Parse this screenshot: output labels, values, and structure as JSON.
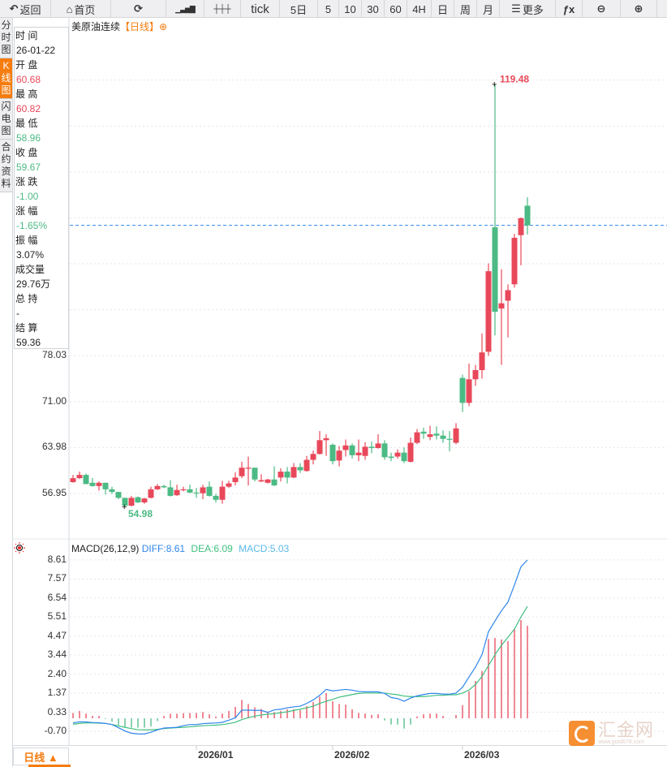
{
  "toolbar": {
    "items": [
      {
        "label": "返回",
        "icon": "back-arrow-icon"
      },
      {
        "label": "首页",
        "icon": "home-icon"
      },
      {
        "label": "",
        "icon": "refresh-icon"
      },
      {
        "label": "",
        "icon": "bar-chart-icon"
      },
      {
        "label": "",
        "icon": "candlestick-icon"
      },
      {
        "label": "tick"
      },
      {
        "label": "5日"
      },
      {
        "label": "5"
      },
      {
        "label": "10"
      },
      {
        "label": "30"
      },
      {
        "label": "60"
      },
      {
        "label": "4H"
      },
      {
        "label": "日"
      },
      {
        "label": "周"
      },
      {
        "label": "月"
      },
      {
        "label": "更多",
        "icon": "menu-icon"
      },
      {
        "label": "",
        "icon": "fx-icon"
      },
      {
        "label": "",
        "icon": "zoom-out-icon"
      },
      {
        "label": "",
        "icon": "zoom-in-icon"
      }
    ]
  },
  "side_tabs": [
    {
      "label": "分时图",
      "active": false
    },
    {
      "label": "K线图",
      "active": true
    },
    {
      "label": "闪电图",
      "active": false
    },
    {
      "label": "合约资料",
      "active": false
    }
  ],
  "chart_title": {
    "name": "美原油连续",
    "period": "【日线】",
    "icon": "add-circle-icon"
  },
  "info": [
    {
      "label": "时 间",
      "value": "26-01-22",
      "color": "#222222"
    },
    {
      "label": "开 盘",
      "value": "60.68",
      "color": "#e8485a"
    },
    {
      "label": "最 高",
      "value": "60.82",
      "color": "#e8485a"
    },
    {
      "label": "最 低",
      "value": "58.96",
      "color": "#4cba84"
    },
    {
      "label": "收 盘",
      "value": "59.67",
      "color": "#4cba84"
    },
    {
      "label": "涨 跌",
      "value": "-1.00",
      "color": "#4cba84"
    },
    {
      "label": "涨 幅",
      "value": "-1.65%",
      "color": "#4cba84"
    },
    {
      "label": "振 幅",
      "value": "3.07%",
      "color": "#222222"
    },
    {
      "label": "成交量",
      "value": "29.76万",
      "color": "#222222"
    },
    {
      "label": "总 持",
      "value": " -",
      "color": "#222222"
    },
    {
      "label": "结 算",
      "value": "59.36",
      "color": "#222222"
    }
  ],
  "colors": {
    "up": "#e8485a",
    "down": "#4cba84",
    "diff": "#2e86ee",
    "dea": "#3fbf7f",
    "macd_label": "#5bb8e8",
    "accent": "#f57c0f",
    "last_price_line": "#2e86ee"
  },
  "chart_data": [
    {
      "type": "candlestick",
      "y_ticks": [
        "56.95",
        "63.98",
        "71.00",
        "78.03"
      ],
      "grid": true,
      "max_marker": "119.48",
      "min_marker": "54.98",
      "last_price": 97.9,
      "x_ticks": [
        {
          "label": "2026/01",
          "index": 19
        },
        {
          "label": "2026/02",
          "index": 40
        },
        {
          "label": "2026/03",
          "index": 60
        }
      ],
      "ohlc": [
        [
          58.7,
          59.8,
          58.6,
          59.3
        ],
        [
          59.3,
          60.3,
          59.2,
          59.8
        ],
        [
          59.8,
          60.0,
          58.4,
          58.4
        ],
        [
          58.6,
          59.3,
          58.0,
          58.1
        ],
        [
          58.1,
          58.8,
          57.4,
          58.6
        ],
        [
          58.6,
          58.6,
          56.8,
          57.6
        ],
        [
          57.6,
          58.0,
          56.9,
          57.2
        ],
        [
          57.2,
          57.2,
          56.1,
          56.3
        ],
        [
          56.3,
          56.3,
          54.98,
          55.1
        ],
        [
          55.1,
          56.6,
          55.0,
          56.3
        ],
        [
          56.4,
          56.5,
          55.5,
          55.6
        ],
        [
          55.6,
          56.3,
          55.4,
          56.2
        ],
        [
          56.3,
          58.0,
          56.2,
          57.6
        ],
        [
          57.6,
          58.4,
          57.5,
          58.1
        ],
        [
          58.1,
          58.3,
          57.8,
          57.9
        ],
        [
          57.9,
          59.0,
          56.5,
          56.6
        ],
        [
          56.7,
          58.3,
          56.6,
          57.5
        ],
        [
          57.5,
          58.0,
          57.3,
          57.6
        ],
        [
          57.6,
          58.3,
          57.0,
          57.1
        ],
        [
          57.1,
          57.8,
          56.3,
          57.0
        ],
        [
          57.0,
          58.3,
          56.1,
          57.9
        ],
        [
          58.0,
          58.8,
          56.5,
          56.6
        ],
        [
          56.6,
          56.9,
          55.6,
          56.0
        ],
        [
          56.0,
          58.9,
          55.4,
          58.0
        ],
        [
          58.0,
          58.9,
          57.8,
          58.5
        ],
        [
          58.7,
          60.2,
          58.2,
          59.4
        ],
        [
          59.6,
          61.8,
          59.3,
          60.9
        ],
        [
          60.8,
          62.6,
          58.2,
          60.9
        ],
        [
          60.9,
          60.9,
          58.8,
          59.1
        ],
        [
          58.8,
          59.9,
          58.7,
          59.0
        ],
        [
          58.6,
          59.2,
          58.5,
          59.1
        ],
        [
          59.1,
          61.1,
          58.1,
          58.2
        ],
        [
          59.4,
          60.8,
          58.8,
          60.3
        ],
        [
          60.3,
          61.0,
          58.5,
          59.4
        ],
        [
          59.4,
          61.6,
          59.3,
          61.0
        ],
        [
          61.0,
          61.6,
          60.1,
          60.5
        ],
        [
          60.4,
          62.7,
          60.3,
          62.1
        ],
        [
          62.1,
          63.5,
          61.4,
          63.0
        ],
        [
          63.0,
          66.5,
          62.9,
          65.1
        ],
        [
          65.1,
          66.0,
          62.7,
          65.4
        ],
        [
          64.4,
          64.6,
          61.4,
          61.9
        ],
        [
          62.0,
          64.2,
          61.1,
          63.5
        ],
        [
          63.6,
          65.2,
          62.6,
          64.3
        ],
        [
          64.3,
          64.6,
          62.3,
          62.8
        ],
        [
          62.8,
          65.2,
          61.9,
          63.2
        ],
        [
          62.7,
          64.8,
          62.1,
          64.1
        ],
        [
          64.1,
          64.9,
          63.1,
          63.9
        ],
        [
          63.9,
          66.0,
          63.8,
          64.6
        ],
        [
          64.6,
          65.1,
          62.1,
          62.5
        ],
        [
          62.6,
          63.2,
          61.9,
          62.4
        ],
        [
          62.6,
          63.7,
          62.3,
          63.2
        ],
        [
          63.2,
          64.0,
          61.6,
          61.9
        ],
        [
          61.8,
          65.5,
          61.7,
          64.7
        ],
        [
          64.7,
          66.8,
          64.5,
          66.3
        ],
        [
          66.4,
          67.0,
          65.3,
          66.1
        ],
        [
          65.6,
          67.3,
          65.1,
          66.0
        ],
        [
          66.1,
          67.2,
          65.2,
          65.8
        ],
        [
          65.8,
          66.6,
          64.7,
          65.3
        ],
        [
          65.3,
          66.5,
          63.4,
          65.2
        ],
        [
          64.7,
          67.7,
          64.5,
          66.9
        ],
        [
          74.6,
          75.1,
          69.4,
          70.8
        ],
        [
          70.8,
          76.8,
          70.3,
          74.4
        ],
        [
          74.4,
          76.6,
          73.4,
          75.8
        ],
        [
          75.8,
          81.4,
          74.5,
          78.5
        ],
        [
          78.6,
          92.1,
          78.0,
          90.9
        ],
        [
          97.6,
          119.48,
          81.1,
          84.7
        ],
        [
          85.2,
          91.2,
          76.6,
          86.0
        ],
        [
          86.4,
          88.9,
          80.8,
          88.0
        ],
        [
          88.9,
          96.6,
          88.4,
          96.0
        ],
        [
          96.4,
          99.1,
          91.8,
          99.0
        ],
        [
          100.9,
          102.2,
          96.5,
          97.9
        ]
      ]
    },
    {
      "type": "macd",
      "title": "MACD(26,12,9)",
      "diff_label": "DIFF:8.61",
      "dea_label": "DEA:6.09",
      "macd_label": "MACD:5.03",
      "y_ticks": [
        "8.61",
        "7.57",
        "6.54",
        "5.51",
        "4.47",
        "3.44",
        "2.40",
        "1.37",
        "0.33",
        "-0.70"
      ],
      "diff": [
        -0.25,
        -0.19,
        -0.2,
        -0.23,
        -0.24,
        -0.28,
        -0.34,
        -0.51,
        -0.69,
        -0.81,
        -0.85,
        -0.85,
        -0.76,
        -0.63,
        -0.53,
        -0.51,
        -0.49,
        -0.4,
        -0.34,
        -0.34,
        -0.29,
        -0.27,
        -0.25,
        -0.22,
        -0.1,
        0.03,
        0.44,
        0.44,
        0.43,
        0.43,
        0.32,
        0.46,
        0.49,
        0.57,
        0.62,
        0.66,
        0.81,
        1.0,
        1.25,
        1.57,
        1.49,
        1.53,
        1.57,
        1.53,
        1.46,
        1.44,
        1.44,
        1.44,
        1.35,
        1.13,
        1.07,
        0.93,
        1.1,
        1.22,
        1.29,
        1.35,
        1.35,
        1.32,
        1.31,
        1.37,
        1.69,
        2.25,
        2.79,
        3.46,
        4.71,
        5.29,
        5.85,
        6.32,
        7.25,
        8.24,
        8.61
      ],
      "dea": [
        -0.32,
        -0.28,
        -0.25,
        -0.25,
        -0.26,
        -0.28,
        -0.34,
        -0.41,
        -0.49,
        -0.56,
        -0.62,
        -0.63,
        -0.63,
        -0.6,
        -0.56,
        -0.53,
        -0.51,
        -0.49,
        -0.46,
        -0.43,
        -0.4,
        -0.39,
        -0.37,
        -0.34,
        -0.29,
        -0.22,
        -0.07,
        0.03,
        0.12,
        0.18,
        0.22,
        0.25,
        0.31,
        0.35,
        0.43,
        0.49,
        0.57,
        0.66,
        0.81,
        0.93,
        1.03,
        1.15,
        1.22,
        1.29,
        1.35,
        1.37,
        1.37,
        1.37,
        1.37,
        1.32,
        1.28,
        1.21,
        1.18,
        1.18,
        1.18,
        1.21,
        1.25,
        1.25,
        1.28,
        1.28,
        1.37,
        1.54,
        1.84,
        2.28,
        2.87,
        3.46,
        3.97,
        4.41,
        4.85,
        5.51,
        6.09
      ],
      "macd": [
        0.29,
        0.4,
        0.26,
        0.13,
        0.13,
        -0.04,
        -0.18,
        -0.37,
        -0.49,
        -0.51,
        -0.51,
        -0.51,
        -0.44,
        -0.15,
        0.13,
        0.25,
        0.25,
        0.28,
        0.29,
        0.29,
        0.34,
        0.22,
        0.1,
        0.26,
        0.4,
        0.62,
        1.0,
        0.78,
        0.6,
        0.51,
        0.37,
        0.34,
        0.4,
        0.49,
        0.49,
        0.44,
        0.66,
        0.88,
        1.18,
        1.37,
        0.93,
        0.78,
        0.74,
        0.49,
        0.29,
        0.26,
        0.18,
        0.22,
        -0.12,
        -0.34,
        -0.34,
        -0.56,
        -0.34,
        0.1,
        0.22,
        0.26,
        0.26,
        0.13,
        -0.02,
        0.18,
        0.71,
        1.47,
        2.03,
        2.57,
        4.31,
        4.37,
        4.29,
        4.19,
        4.85,
        5.34,
        5.03
      ]
    }
  ],
  "bottom": {
    "period_button": "日线 ▲"
  },
  "logo": {
    "text": "汇金网",
    "url": "www.gold678.com"
  }
}
